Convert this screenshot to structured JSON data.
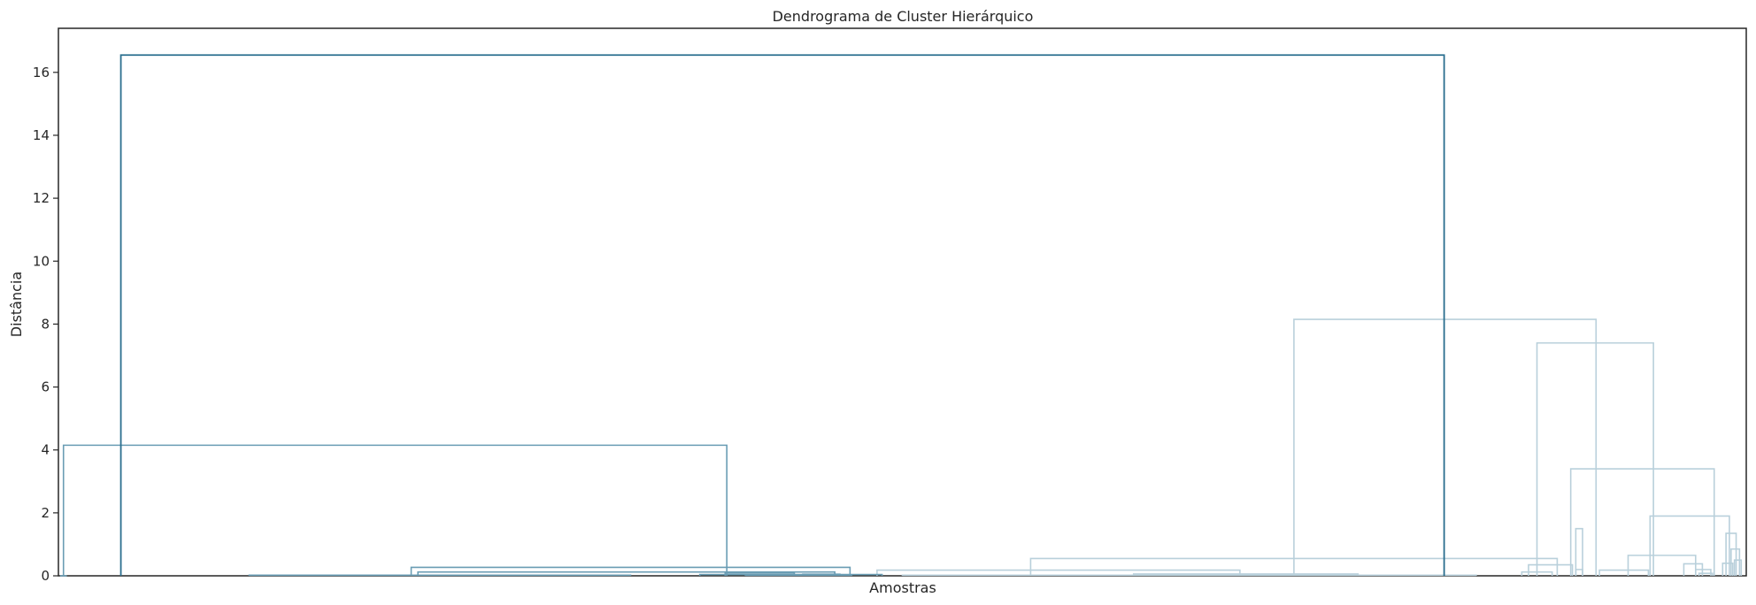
{
  "chart_data": {
    "type": "dendrogram",
    "title": "Dendrograma de Cluster Hierárquico",
    "xlabel": "Amostras",
    "ylabel": "Distância",
    "ylim": [
      0,
      17.4
    ],
    "yticks": [
      0,
      2,
      4,
      6,
      8,
      10,
      12,
      14,
      16
    ],
    "grid": false,
    "colors": {
      "root": "#2b6f8f",
      "cluster_a": "#6a9db4",
      "cluster_b": "#b9d0db"
    },
    "leaf_count": 100,
    "links": [
      {
        "left": 3.7,
        "right": 82.1,
        "height": 16.55,
        "color": "root"
      },
      {
        "left": 0.3,
        "right": 39.6,
        "height": 4.15,
        "color": "cluster_a"
      },
      {
        "left": 0.1,
        "right": 0.5,
        "height": 0.0,
        "color": "cluster_a"
      },
      {
        "left": 20.9,
        "right": 46.9,
        "height": 0.27,
        "color": "cluster_a"
      },
      {
        "left": 21.3,
        "right": 46.0,
        "height": 0.12,
        "color": "cluster_a"
      },
      {
        "left": 11.3,
        "right": 33.9,
        "height": 0.02,
        "color": "cluster_a"
      },
      {
        "left": 38.0,
        "right": 48.8,
        "height": 0.04,
        "color": "cluster_a"
      },
      {
        "left": 39.5,
        "right": 43.6,
        "height": 0.09,
        "color": "cluster_a"
      },
      {
        "left": 40.7,
        "right": 47.0,
        "height": 0.02,
        "color": "cluster_a"
      },
      {
        "left": 44.1,
        "right": 46.3,
        "height": 0.05,
        "color": "cluster_a"
      },
      {
        "left": 73.2,
        "right": 91.1,
        "height": 8.15,
        "color": "cluster_b"
      },
      {
        "left": 57.6,
        "right": 88.8,
        "height": 0.55,
        "color": "cluster_b"
      },
      {
        "left": 48.5,
        "right": 70.0,
        "height": 0.18,
        "color": "cluster_b"
      },
      {
        "left": 63.7,
        "right": 77.0,
        "height": 0.06,
        "color": "cluster_b"
      },
      {
        "left": 50.0,
        "right": 84.0,
        "height": 0.02,
        "color": "cluster_b"
      },
      {
        "left": 87.6,
        "right": 94.5,
        "height": 7.4,
        "color": "cluster_b"
      },
      {
        "left": 89.6,
        "right": 98.1,
        "height": 3.4,
        "color": "cluster_b"
      },
      {
        "left": 94.3,
        "right": 99.0,
        "height": 1.9,
        "color": "cluster_b"
      },
      {
        "left": 93.0,
        "right": 97.0,
        "height": 0.65,
        "color": "cluster_b"
      },
      {
        "left": 98.8,
        "right": 99.4,
        "height": 1.35,
        "color": "cluster_b"
      },
      {
        "left": 99.1,
        "right": 99.6,
        "height": 0.85,
        "color": "cluster_b"
      },
      {
        "left": 87.1,
        "right": 89.7,
        "height": 0.35,
        "color": "cluster_b"
      },
      {
        "left": 86.7,
        "right": 88.5,
        "height": 0.12,
        "color": "cluster_b"
      },
      {
        "left": 91.3,
        "right": 94.2,
        "height": 0.18,
        "color": "cluster_b"
      },
      {
        "left": 96.3,
        "right": 97.4,
        "height": 0.38,
        "color": "cluster_b"
      },
      {
        "left": 97.0,
        "right": 97.9,
        "height": 0.2,
        "color": "cluster_b"
      },
      {
        "left": 97.2,
        "right": 98.0,
        "height": 0.08,
        "color": "cluster_b"
      },
      {
        "left": 89.9,
        "right": 90.3,
        "height": 1.5,
        "color": "cluster_b"
      },
      {
        "left": 89.9,
        "right": 90.3,
        "height": 0.2,
        "color": "cluster_b"
      },
      {
        "left": 98.6,
        "right": 99.2,
        "height": 0.4,
        "color": "cluster_b"
      },
      {
        "left": 99.3,
        "right": 99.7,
        "height": 0.5,
        "color": "cluster_b"
      }
    ]
  }
}
